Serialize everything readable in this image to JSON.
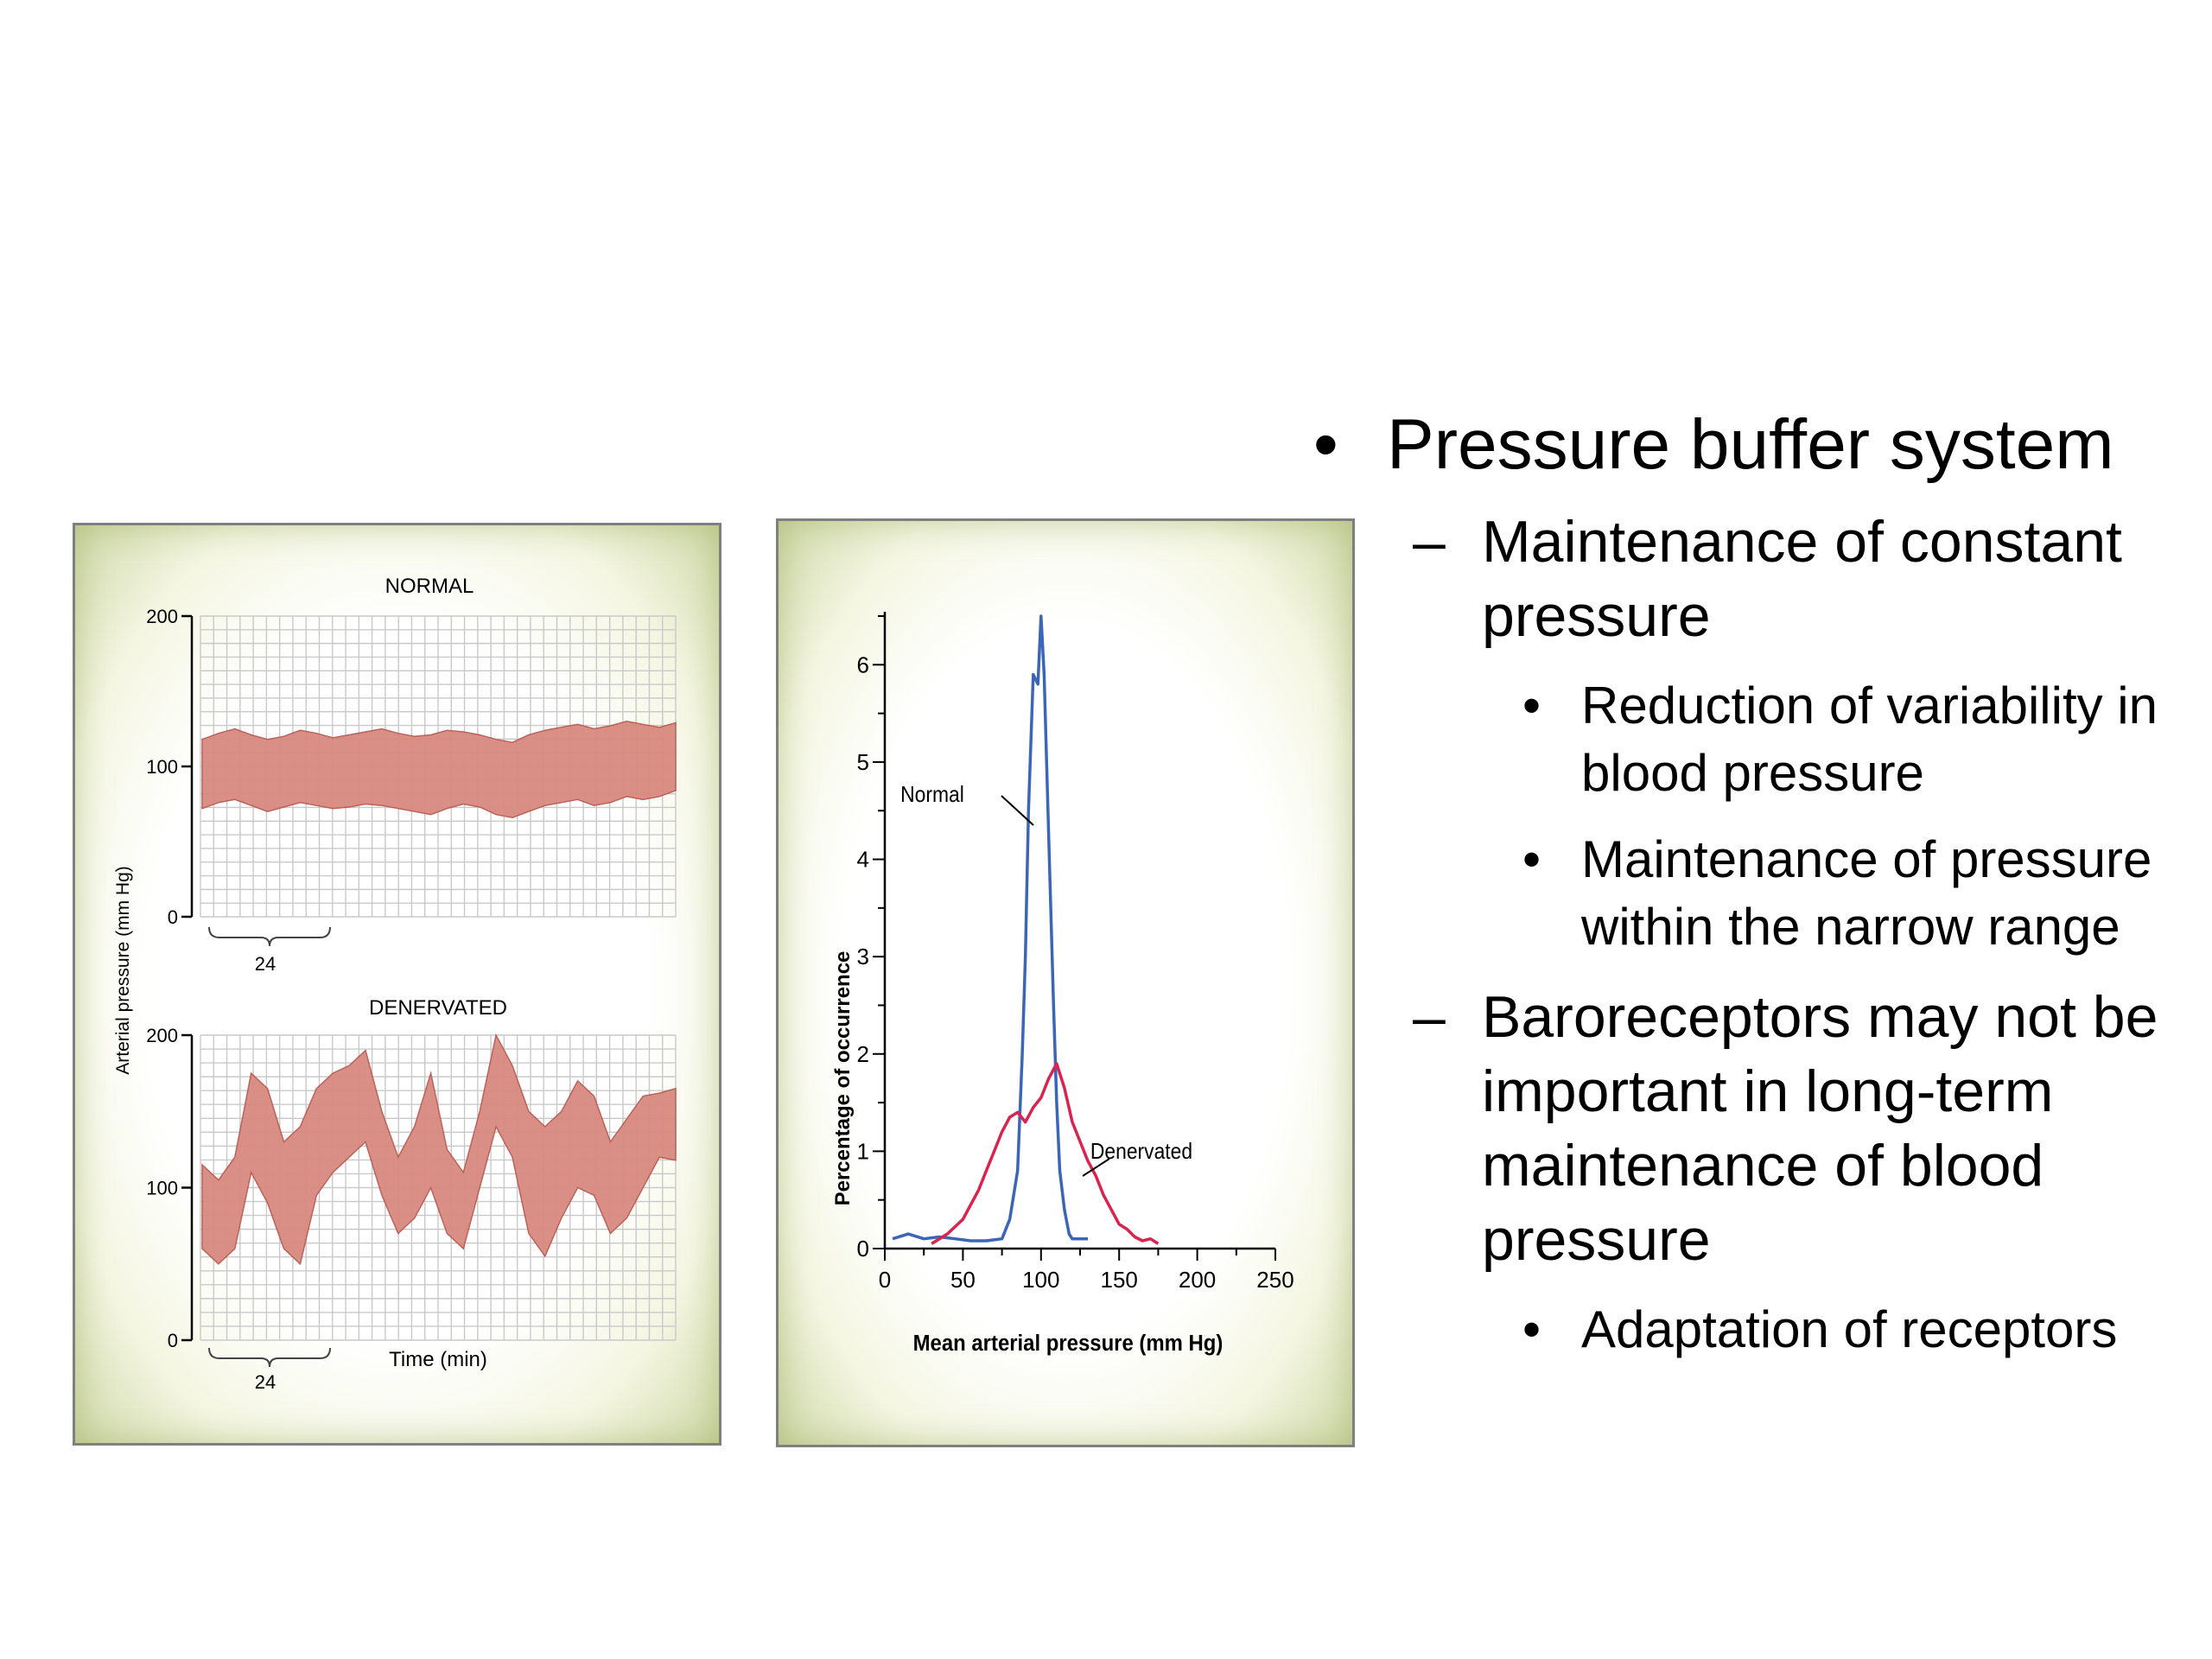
{
  "bullets": {
    "items": [
      {
        "level": 1,
        "marker": "•",
        "text": "Pressure buffer system"
      },
      {
        "level": 2,
        "marker": "–",
        "text": "Maintenance of constant pressure"
      },
      {
        "level": 3,
        "marker": "•",
        "text": "Reduction of variability in blood pressure"
      },
      {
        "level": 3,
        "marker": "•",
        "text": "Maintenance of pressure within the narrow range"
      },
      {
        "level": 2,
        "marker": "–",
        "text": "Baroreceptors may not be important in long-term maintenance of blood pressure"
      },
      {
        "level": 3,
        "marker": "•",
        "text": "Adaptation of receptors"
      }
    ]
  },
  "colors": {
    "band_fill": "#d98a80",
    "band_stroke": "#b85a52",
    "normal_line": "#3a66b5",
    "denervated_line": "#d8244f",
    "frame_border": "#7f7f7f",
    "frame_glow": "#cfd8a8"
  },
  "chart_data": [
    {
      "type": "area",
      "title": "NORMAL",
      "ylabel": "Arterial pressure (mm Hg)",
      "xlabel": "",
      "ylim": [
        0,
        200
      ],
      "yticks": [
        0,
        100,
        200
      ],
      "x_bracket_label": "24",
      "grid": true,
      "series": [
        {
          "upper": [
            118,
            122,
            125,
            121,
            118,
            120,
            124,
            122,
            119,
            121,
            123,
            125,
            122,
            120,
            121,
            124,
            123,
            121,
            118,
            116,
            121,
            124,
            126,
            128,
            125,
            127,
            130,
            128,
            126,
            129
          ],
          "lower": [
            72,
            76,
            78,
            74,
            70,
            73,
            76,
            74,
            72,
            73,
            75,
            74,
            72,
            70,
            68,
            72,
            75,
            73,
            68,
            66,
            70,
            74,
            76,
            78,
            74,
            76,
            80,
            78,
            80,
            84
          ]
        }
      ]
    },
    {
      "type": "area",
      "title": "DENERVATED",
      "ylabel": "Arterial pressure (mm Hg)",
      "xlabel": "Time (min)",
      "ylim": [
        0,
        200
      ],
      "yticks": [
        0,
        100,
        200
      ],
      "x_bracket_label": "24",
      "grid": true,
      "series": [
        {
          "upper": [
            115,
            105,
            120,
            175,
            165,
            130,
            140,
            165,
            175,
            180,
            190,
            150,
            120,
            140,
            175,
            125,
            110,
            150,
            200,
            180,
            150,
            140,
            150,
            170,
            160,
            130,
            145,
            160,
            162,
            165
          ],
          "lower": [
            60,
            50,
            60,
            110,
            90,
            60,
            50,
            95,
            110,
            120,
            130,
            95,
            70,
            80,
            100,
            70,
            60,
            100,
            140,
            120,
            70,
            55,
            80,
            100,
            95,
            70,
            80,
            100,
            120,
            118
          ]
        }
      ]
    },
    {
      "type": "line",
      "title": "",
      "xlabel": "Mean arterial pressure (mm Hg)",
      "ylabel": "Percentage of occurrence",
      "xlim": [
        0,
        250
      ],
      "ylim": [
        0,
        6.5
      ],
      "xticks": [
        0,
        50,
        100,
        150,
        200,
        250
      ],
      "yticks": [
        0,
        1,
        2,
        3,
        4,
        5,
        6
      ],
      "grid": false,
      "series": [
        {
          "name": "Normal",
          "x": [
            5,
            15,
            25,
            35,
            45,
            55,
            65,
            75,
            80,
            85,
            88,
            90,
            92,
            95,
            98,
            100,
            102,
            105,
            108,
            110,
            112,
            115,
            118,
            120,
            125,
            130
          ],
          "y": [
            0.1,
            0.15,
            0.1,
            0.12,
            0.1,
            0.08,
            0.08,
            0.1,
            0.3,
            0.8,
            2.0,
            3.0,
            4.5,
            5.9,
            5.8,
            6.5,
            5.9,
            4.2,
            2.5,
            1.5,
            0.8,
            0.4,
            0.15,
            0.1,
            0.1,
            0.1
          ]
        },
        {
          "name": "Denervated",
          "x": [
            30,
            40,
            50,
            55,
            60,
            65,
            70,
            75,
            80,
            85,
            90,
            95,
            100,
            105,
            110,
            115,
            120,
            125,
            130,
            135,
            140,
            145,
            150,
            155,
            160,
            165,
            170,
            175
          ],
          "y": [
            0.05,
            0.15,
            0.3,
            0.45,
            0.6,
            0.8,
            1.0,
            1.2,
            1.35,
            1.4,
            1.3,
            1.45,
            1.55,
            1.75,
            1.9,
            1.65,
            1.3,
            1.1,
            0.9,
            0.75,
            0.55,
            0.4,
            0.25,
            0.2,
            0.12,
            0.08,
            0.1,
            0.05
          ]
        }
      ]
    }
  ]
}
